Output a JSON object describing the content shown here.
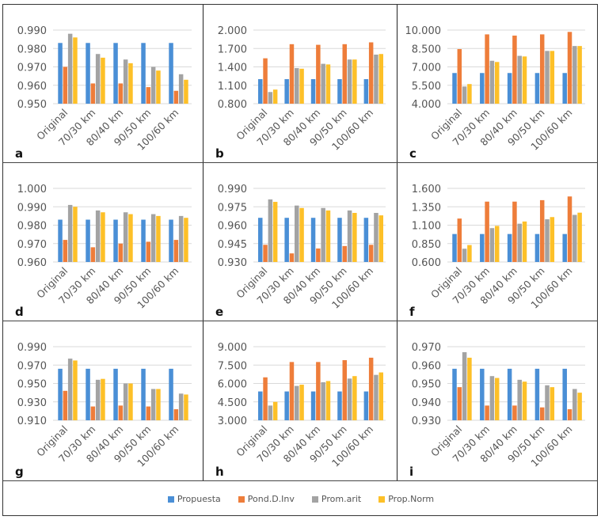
{
  "legend": [
    {
      "name": "Propuesta",
      "color": "#4a8fd6"
    },
    {
      "name": "Pond.D.Inv",
      "color": "#ee7d3a"
    },
    {
      "name": "Prom.arit",
      "color": "#a3a3a3"
    },
    {
      "name": "Prop.Norm",
      "color": "#fdc028"
    }
  ],
  "chart_data": [
    {
      "panel": "a",
      "type": "bar",
      "categories": [
        "Original",
        "70/30 km",
        "80/40 km",
        "90/50 km",
        "100/60 km"
      ],
      "ylim": [
        0.95,
        0.99
      ],
      "yticks": [
        "0.950",
        "0.960",
        "0.970",
        "0.980",
        "0.990"
      ],
      "grid": true,
      "series": [
        {
          "name": "Propuesta",
          "values": [
            0.983,
            0.983,
            0.983,
            0.983,
            0.983
          ]
        },
        {
          "name": "Pond.D.Inv",
          "values": [
            0.97,
            0.961,
            0.961,
            0.959,
            0.957
          ]
        },
        {
          "name": "Prom.arit",
          "values": [
            0.988,
            0.977,
            0.974,
            0.97,
            0.966
          ]
        },
        {
          "name": "Prop.Norm",
          "values": [
            0.986,
            0.975,
            0.972,
            0.968,
            0.963
          ]
        }
      ]
    },
    {
      "panel": "b",
      "type": "bar",
      "categories": [
        "Original",
        "70/30 km",
        "80/40 km",
        "90/50 km",
        "100/60 km"
      ],
      "ylim": [
        0.8,
        2.0
      ],
      "yticks": [
        "0.800",
        "1.100",
        "1.400",
        "1.700",
        "2.000"
      ],
      "grid": true,
      "series": [
        {
          "name": "Propuesta",
          "values": [
            1.2,
            1.2,
            1.2,
            1.2,
            1.2
          ]
        },
        {
          "name": "Pond.D.Inv",
          "values": [
            1.54,
            1.77,
            1.76,
            1.77,
            1.8
          ]
        },
        {
          "name": "Prom.arit",
          "values": [
            0.99,
            1.38,
            1.45,
            1.52,
            1.6
          ]
        },
        {
          "name": "Prop.Norm",
          "values": [
            1.03,
            1.37,
            1.44,
            1.52,
            1.61
          ]
        }
      ]
    },
    {
      "panel": "c",
      "type": "bar",
      "categories": [
        "Original",
        "70/30 km",
        "80/40 km",
        "90/50 km",
        "100/60 km"
      ],
      "ylim": [
        4.0,
        10.0
      ],
      "yticks": [
        "4.000",
        "5.500",
        "7.000",
        "8.500",
        "10.000"
      ],
      "grid": true,
      "series": [
        {
          "name": "Propuesta",
          "values": [
            6.5,
            6.5,
            6.5,
            6.5,
            6.5
          ]
        },
        {
          "name": "Pond.D.Inv",
          "values": [
            8.45,
            9.65,
            9.55,
            9.65,
            9.85
          ]
        },
        {
          "name": "Prom.arit",
          "values": [
            5.4,
            7.5,
            7.9,
            8.3,
            8.7
          ]
        },
        {
          "name": "Prop.Norm",
          "values": [
            5.6,
            7.4,
            7.85,
            8.3,
            8.7
          ]
        }
      ]
    },
    {
      "panel": "d",
      "type": "bar",
      "categories": [
        "Original",
        "70/30 km",
        "80/40 km",
        "90/50 km",
        "100/60 km"
      ],
      "ylim": [
        0.96,
        1.0
      ],
      "yticks": [
        "0.960",
        "0.970",
        "0.980",
        "0.990",
        "1.000"
      ],
      "grid": true,
      "series": [
        {
          "name": "Propuesta",
          "values": [
            0.983,
            0.983,
            0.983,
            0.983,
            0.983
          ]
        },
        {
          "name": "Pond.D.Inv",
          "values": [
            0.972,
            0.968,
            0.97,
            0.971,
            0.972
          ]
        },
        {
          "name": "Prom.arit",
          "values": [
            0.991,
            0.988,
            0.987,
            0.986,
            0.985
          ]
        },
        {
          "name": "Prop.Norm",
          "values": [
            0.99,
            0.987,
            0.986,
            0.985,
            0.984
          ]
        }
      ]
    },
    {
      "panel": "e",
      "type": "bar",
      "categories": [
        "Original",
        "70/30 km",
        "80/40 km",
        "90/50 km",
        "100/60 km"
      ],
      "ylim": [
        0.93,
        0.99
      ],
      "yticks": [
        "0.930",
        "0.945",
        "0.960",
        "0.975",
        "0.990"
      ],
      "grid": true,
      "series": [
        {
          "name": "Propuesta",
          "values": [
            0.966,
            0.966,
            0.966,
            0.966,
            0.966
          ]
        },
        {
          "name": "Pond.D.Inv",
          "values": [
            0.944,
            0.937,
            0.941,
            0.943,
            0.944
          ]
        },
        {
          "name": "Prom.arit",
          "values": [
            0.981,
            0.976,
            0.974,
            0.972,
            0.97
          ]
        },
        {
          "name": "Prop.Norm",
          "values": [
            0.979,
            0.974,
            0.972,
            0.97,
            0.968
          ]
        }
      ]
    },
    {
      "panel": "f",
      "type": "bar",
      "categories": [
        "Original",
        "70/30 km",
        "80/40 km",
        "90/50 km",
        "100/60 km"
      ],
      "ylim": [
        0.6,
        1.6
      ],
      "yticks": [
        "0.600",
        "0.850",
        "1.100",
        "1.350",
        "1.600"
      ],
      "grid": true,
      "series": [
        {
          "name": "Propuesta",
          "values": [
            0.98,
            0.98,
            0.98,
            0.98,
            0.98
          ]
        },
        {
          "name": "Pond.D.Inv",
          "values": [
            1.19,
            1.42,
            1.42,
            1.44,
            1.49
          ]
        },
        {
          "name": "Prom.arit",
          "values": [
            0.78,
            1.06,
            1.12,
            1.18,
            1.24
          ]
        },
        {
          "name": "Prop.Norm",
          "values": [
            0.83,
            1.09,
            1.15,
            1.21,
            1.27
          ]
        }
      ]
    },
    {
      "panel": "g",
      "type": "bar",
      "categories": [
        "Original",
        "70/30 km",
        "80/40 km",
        "90/50 km",
        "100/60 km"
      ],
      "ylim": [
        0.91,
        0.99
      ],
      "yticks": [
        "0.910",
        "0.930",
        "0.950",
        "0.970",
        "0.990"
      ],
      "grid": true,
      "series": [
        {
          "name": "Propuesta",
          "values": [
            0.966,
            0.966,
            0.966,
            0.966,
            0.966
          ]
        },
        {
          "name": "Pond.D.Inv",
          "values": [
            0.942,
            0.925,
            0.926,
            0.925,
            0.922
          ]
        },
        {
          "name": "Prom.arit",
          "values": [
            0.977,
            0.954,
            0.95,
            0.944,
            0.939
          ]
        },
        {
          "name": "Prop.Norm",
          "values": [
            0.975,
            0.955,
            0.95,
            0.944,
            0.938
          ]
        }
      ]
    },
    {
      "panel": "h",
      "type": "bar",
      "categories": [
        "Original",
        "70/30 km",
        "80/40 km",
        "90/50 km",
        "100/60 km"
      ],
      "ylim": [
        3.0,
        9.0
      ],
      "yticks": [
        "3.000",
        "4.500",
        "6.000",
        "7.500",
        "9.000"
      ],
      "grid": true,
      "series": [
        {
          "name": "Propuesta",
          "values": [
            5.35,
            5.35,
            5.35,
            5.35,
            5.35
          ]
        },
        {
          "name": "Pond.D.Inv",
          "values": [
            6.5,
            7.75,
            7.75,
            7.9,
            8.1
          ]
        },
        {
          "name": "Prom.arit",
          "values": [
            4.2,
            5.8,
            6.1,
            6.4,
            6.7
          ]
        },
        {
          "name": "Prop.Norm",
          "values": [
            4.5,
            5.9,
            6.2,
            6.6,
            6.9
          ]
        }
      ]
    },
    {
      "panel": "i",
      "type": "bar",
      "categories": [
        "Original",
        "70/30 km",
        "80/40 km",
        "90/50 km",
        "100/60 km"
      ],
      "ylim": [
        0.93,
        0.97
      ],
      "yticks": [
        "0.930",
        "0.940",
        "0.950",
        "0.960",
        "0.970"
      ],
      "grid": true,
      "series": [
        {
          "name": "Propuesta",
          "values": [
            0.958,
            0.958,
            0.958,
            0.958,
            0.958
          ]
        },
        {
          "name": "Pond.D.Inv",
          "values": [
            0.948,
            0.938,
            0.938,
            0.937,
            0.936
          ]
        },
        {
          "name": "Prom.arit",
          "values": [
            0.967,
            0.954,
            0.952,
            0.949,
            0.947
          ]
        },
        {
          "name": "Prop.Norm",
          "values": [
            0.964,
            0.953,
            0.951,
            0.948,
            0.945
          ]
        }
      ]
    }
  ]
}
